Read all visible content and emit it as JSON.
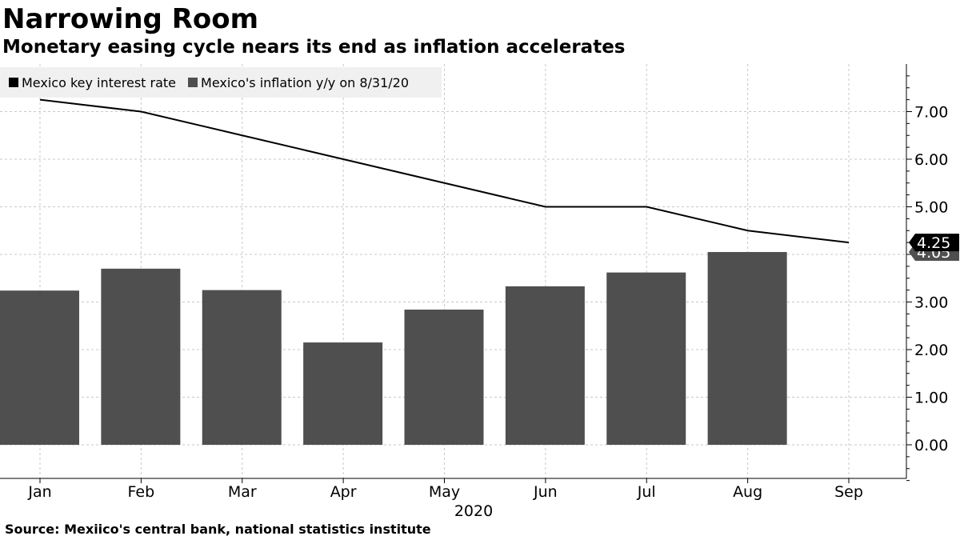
{
  "header": {
    "title": "Narrowing Room",
    "subtitle": "Monetary easing cycle nears its end as inflation accelerates"
  },
  "footer": {
    "source": "Source: Mexiico's central bank, national statistics institute"
  },
  "chart_data": {
    "type": "bar",
    "categories": [
      "Jan",
      "Feb",
      "Mar",
      "Apr",
      "May",
      "Jun",
      "Jul",
      "Aug",
      "Sep"
    ],
    "x_year_label": "2020",
    "series": [
      {
        "name": "Mexico key interest rate",
        "type": "line",
        "color": "#000000",
        "values": [
          7.25,
          7.0,
          6.5,
          6.0,
          5.5,
          5.0,
          5.0,
          4.5,
          4.25
        ],
        "last_value_label": "4.25"
      },
      {
        "name": "Mexico's inflation y/y on 8/31/20",
        "type": "bar",
        "color": "#4f4f4f",
        "values": [
          3.24,
          3.7,
          3.25,
          2.15,
          2.84,
          3.33,
          3.62,
          4.05,
          null
        ],
        "last_value_label": "4.05"
      }
    ],
    "y_ticks": [
      "0.00",
      "1.00",
      "2.00",
      "3.00",
      "4.00",
      "5.00",
      "6.00",
      "7.00"
    ],
    "ylim": [
      -0.75,
      7.95
    ],
    "grid": true,
    "legend_position": "top-left",
    "y_axis_side": "right"
  }
}
